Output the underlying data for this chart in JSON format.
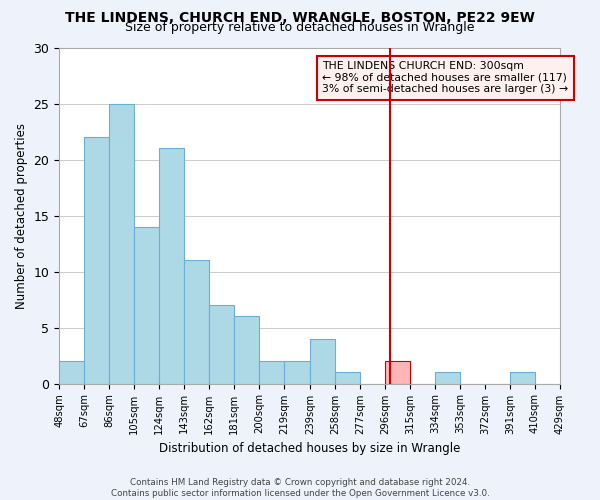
{
  "title": "THE LINDENS, CHURCH END, WRANGLE, BOSTON, PE22 9EW",
  "subtitle": "Size of property relative to detached houses in Wrangle",
  "xlabel": "Distribution of detached houses by size in Wrangle",
  "ylabel": "Number of detached properties",
  "bar_edges": [
    48,
    67,
    86,
    105,
    124,
    143,
    162,
    181,
    200,
    219,
    239,
    258,
    277,
    296,
    315,
    334,
    353,
    372,
    391,
    410,
    429
  ],
  "bar_heights": [
    2,
    22,
    25,
    14,
    21,
    11,
    7,
    6,
    2,
    2,
    4,
    1,
    0,
    2,
    0,
    1,
    0,
    0,
    1,
    0
  ],
  "bar_color": "#add8e6",
  "highlight_bar_index": 13,
  "highlight_bar_color": "#ffb6b6",
  "highlight_bar_edge_color": "#cc0000",
  "bar_edge_color": "#6baed6",
  "vline_x": 300,
  "vline_color": "#cc0000",
  "annotation_title": "THE LINDENS CHURCH END: 300sqm",
  "annotation_line1": "← 98% of detached houses are smaller (117)",
  "annotation_line2": "3% of semi-detached houses are larger (3) →",
  "annotation_box_color": "#fff0f0",
  "annotation_box_edge_color": "#cc0000",
  "ylim": [
    0,
    30
  ],
  "yticks": [
    0,
    5,
    10,
    15,
    20,
    25,
    30
  ],
  "tick_labels": [
    "48sqm",
    "67sqm",
    "86sqm",
    "105sqm",
    "124sqm",
    "143sqm",
    "162sqm",
    "181sqm",
    "200sqm",
    "219sqm",
    "239sqm",
    "258sqm",
    "277sqm",
    "296sqm",
    "315sqm",
    "334sqm",
    "353sqm",
    "372sqm",
    "391sqm",
    "410sqm",
    "429sqm"
  ],
  "footer_line1": "Contains HM Land Registry data © Crown copyright and database right 2024.",
  "footer_line2": "Contains public sector information licensed under the Open Government Licence v3.0.",
  "bg_color": "#eef2fb",
  "plot_bg_color": "#ffffff",
  "grid_color": "#cccccc"
}
